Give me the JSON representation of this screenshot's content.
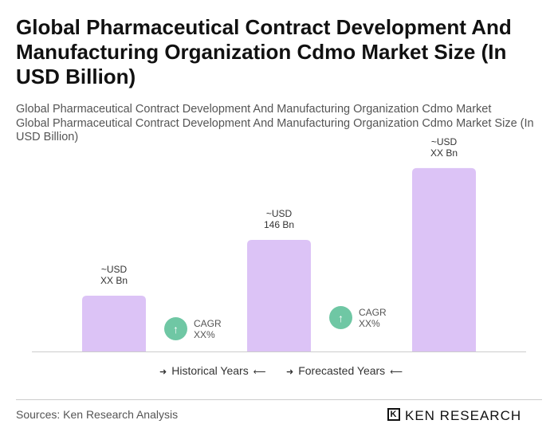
{
  "title": "Global Pharmaceutical Contract Development And Manufacturing Organization Cdmo Market Size (In USD Billion)",
  "subtitle1": "Global Pharmaceutical Contract Development And Manufacturing Organization Cdmo Market",
  "subtitle2": "Global Pharmaceutical Contract Development And Manufacturing Organization Cdmo Market Size (In USD Billion)",
  "chart_data": {
    "type": "bar",
    "categories": [
      "",
      "",
      ""
    ],
    "values": [
      73,
      146,
      240
    ],
    "data_labels": [
      [
        "~USD",
        "XX Bn"
      ],
      [
        "~USD",
        "146 Bn"
      ],
      [
        "~USD",
        "XX Bn"
      ]
    ],
    "bar_color": "#dcc3f6",
    "grid": false,
    "cagr": [
      {
        "label": "CAGR",
        "value": "XX%"
      },
      {
        "label": "CAGR",
        "value": "XX%"
      }
    ],
    "cagr_color": "#6fc7a4",
    "legend": [
      "Historical Years",
      "Forecasted Years"
    ]
  },
  "footer": {
    "source": "Sources: Ken Research Analysis",
    "logo": "KEN RESEARCH"
  }
}
